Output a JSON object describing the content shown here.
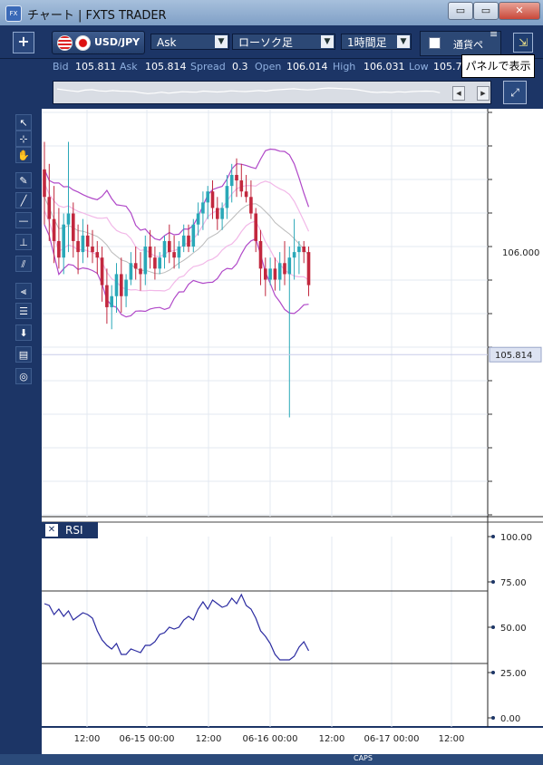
{
  "window": {
    "title": "チャート | FXTS TRADER",
    "app_icon_text": "FX"
  },
  "window_buttons": [
    "▭",
    "▭",
    "✕"
  ],
  "toolbar": {
    "add_label": "+",
    "pair": "USD/JPY",
    "price_type": "Ask",
    "chart_type": "ローソク足",
    "timeframe": "1時間足",
    "currency_label": "通貨ペ",
    "menu_glyph": "≡",
    "panel_glyph": "⇲",
    "tooltip": "パネルで表示"
  },
  "quote": {
    "bid_label": "Bid",
    "bid": "105.811",
    "ask_label": "Ask",
    "ask": "105.814",
    "spread_label": "Spread",
    "spread": "0.3",
    "open_label": "Open",
    "open": "106.014",
    "high_label": "High",
    "high": "106.031",
    "low_label": "Low",
    "low": "105.78"
  },
  "left_tools": [
    "↖",
    "⊹",
    "✋",
    "✎",
    "╱",
    "—",
    "⊥",
    "⫽",
    "⫷",
    "☰",
    "⬇",
    "▤",
    "◎"
  ],
  "price_axis": {
    "labels": [
      "106.000"
    ],
    "current": "105.814"
  },
  "time_axis": {
    "labels": [
      "12:00",
      "06-15 00:00",
      "12:00",
      "06-16 00:00",
      "12:00",
      "06-17 00:00",
      "12:00"
    ]
  },
  "rsi": {
    "title": "RSI",
    "close_glyph": "✕",
    "ticks": [
      "100.00",
      "75.00",
      "50.00",
      "25.00",
      "0.00"
    ]
  },
  "taskbar": {
    "text": "CAPS"
  },
  "colors": {
    "up": "#2aa8b8",
    "down": "#c2283e",
    "band_outer": "#b048c8",
    "band_inner": "#f2b8e8",
    "ma": "#bbbbbb",
    "rsi": "#2a2aa0"
  },
  "chart_data": {
    "type": "candlestick",
    "symbol": "USD/JPY",
    "x_start": "06-14 06:00",
    "x_step": "1h",
    "x_ticks": [
      "12:00",
      "06-15 00:00",
      "12:00",
      "06-16 00:00",
      "12:00",
      "06-17 00:00",
      "12:00"
    ],
    "ylim": [
      105.52,
      106.26
    ],
    "candles": [
      [
        106.15,
        106.2,
        106.05,
        106.1
      ],
      [
        106.1,
        106.16,
        106.02,
        106.06
      ],
      [
        106.06,
        106.12,
        105.98,
        106.02
      ],
      [
        106.02,
        106.08,
        105.97,
        105.99
      ],
      [
        105.99,
        106.07,
        105.96,
        106.05
      ],
      [
        106.05,
        106.2,
        106.0,
        106.07
      ],
      [
        106.07,
        106.09,
        105.99,
        106.02
      ],
      [
        106.02,
        106.05,
        105.96,
        106.0
      ],
      [
        106.0,
        106.06,
        105.98,
        106.03
      ],
      [
        106.03,
        106.05,
        105.99,
        106.01
      ],
      [
        106.01,
        106.04,
        105.98,
        106.0
      ],
      [
        106.0,
        106.02,
        105.96,
        105.99
      ],
      [
        105.99,
        106.01,
        105.91,
        105.94
      ],
      [
        105.94,
        105.97,
        105.87,
        105.9
      ],
      [
        105.9,
        105.94,
        105.86,
        105.92
      ],
      [
        105.92,
        105.98,
        105.89,
        105.96
      ],
      [
        105.96,
        105.99,
        105.89,
        105.92
      ],
      [
        105.92,
        105.96,
        105.9,
        105.95
      ],
      [
        105.95,
        106.0,
        105.94,
        105.98
      ],
      [
        105.98,
        106.01,
        105.95,
        105.97
      ],
      [
        105.97,
        106.0,
        105.93,
        105.96
      ],
      [
        105.96,
        106.03,
        105.94,
        106.01
      ],
      [
        106.01,
        106.04,
        105.97,
        105.99
      ],
      [
        105.99,
        106.01,
        105.95,
        105.97
      ],
      [
        105.97,
        106.0,
        105.96,
        105.99
      ],
      [
        105.99,
        106.03,
        105.97,
        106.02
      ],
      [
        106.02,
        106.05,
        105.98,
        106.0
      ],
      [
        106.0,
        106.03,
        105.97,
        105.99
      ],
      [
        105.99,
        106.02,
        105.97,
        106.01
      ],
      [
        106.01,
        106.05,
        106.0,
        106.03
      ],
      [
        106.03,
        106.05,
        106.0,
        106.01
      ],
      [
        106.01,
        106.06,
        106.0,
        106.05
      ],
      [
        106.05,
        106.09,
        106.03,
        106.07
      ],
      [
        106.07,
        106.11,
        106.04,
        106.09
      ],
      [
        106.09,
        106.12,
        106.06,
        106.11
      ],
      [
        106.11,
        106.13,
        106.06,
        106.08
      ],
      [
        106.08,
        106.1,
        106.04,
        106.06
      ],
      [
        106.06,
        106.09,
        106.04,
        106.08
      ],
      [
        106.08,
        106.14,
        106.06,
        106.12
      ],
      [
        106.12,
        106.16,
        106.09,
        106.14
      ],
      [
        106.14,
        106.17,
        106.1,
        106.13
      ],
      [
        106.13,
        106.16,
        106.1,
        106.11
      ],
      [
        106.11,
        106.14,
        106.09,
        106.1
      ],
      [
        106.1,
        106.13,
        106.06,
        106.07
      ],
      [
        106.07,
        106.08,
        106.0,
        106.02
      ],
      [
        106.02,
        106.04,
        105.94,
        105.97
      ],
      [
        105.97,
        105.99,
        105.92,
        105.95
      ],
      [
        105.95,
        105.99,
        105.94,
        105.97
      ],
      [
        105.97,
        105.99,
        105.93,
        105.95
      ],
      [
        105.95,
        106.0,
        105.93,
        105.98
      ],
      [
        105.98,
        106.02,
        105.94,
        105.96
      ],
      [
        105.96,
        106.01,
        105.7,
        105.99
      ],
      [
        105.99,
        106.06,
        105.95,
        106.0
      ],
      [
        106.0,
        106.02,
        105.96,
        106.01
      ],
      [
        106.01,
        106.02,
        105.98,
        106.0
      ],
      [
        106.0,
        106.01,
        105.92,
        105.94
      ]
    ],
    "rsi": [
      63,
      62,
      57,
      60,
      56,
      59,
      54,
      56,
      58,
      57,
      55,
      48,
      43,
      40,
      38,
      41,
      35,
      35,
      38,
      37,
      36,
      40,
      40,
      42,
      46,
      47,
      50,
      49,
      50,
      54,
      56,
      54,
      60,
      64,
      60,
      65,
      63,
      61,
      62,
      66,
      63,
      68,
      62,
      60,
      55,
      48,
      45,
      41,
      35,
      32,
      32,
      32,
      34,
      39,
      42,
      37
    ]
  }
}
